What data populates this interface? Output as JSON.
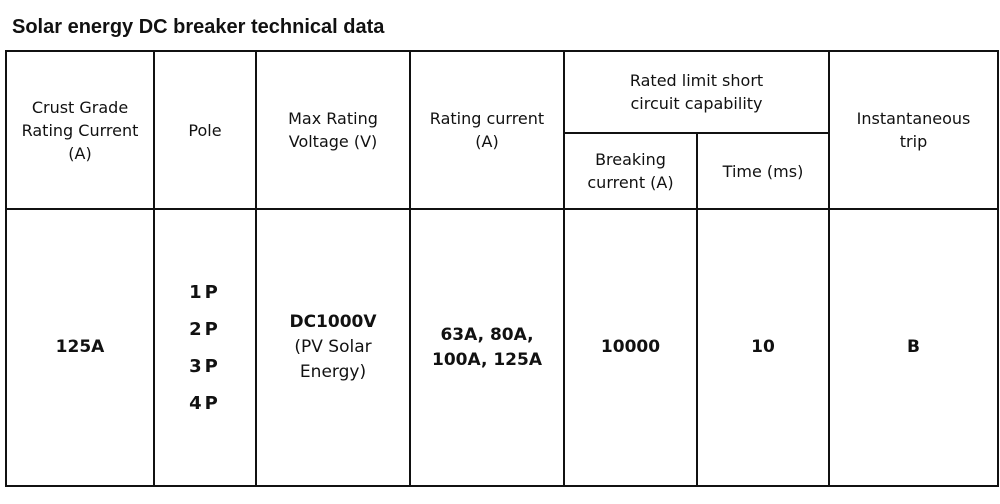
{
  "header": {
    "title": "Solar energy DC breaker technical data"
  },
  "table": {
    "headers": {
      "crust_grade": "Crust Grade Rating Current (A)",
      "pole": "Pole",
      "max_voltage": "Max Rating Voltage (V)",
      "rating_current": "Rating current (A)",
      "short_circuit": "Rated limit short circuit capability",
      "breaking_current": "Breaking current (A)",
      "time": "Time (ms)",
      "instantaneous_trip": "Instantaneous trip"
    },
    "row": {
      "crust_grade": "125A",
      "poles": [
        "1P",
        "2P",
        "3P",
        "4P"
      ],
      "voltage": "DC1000V",
      "voltage_note": "(PV Solar Energy)",
      "rating_current": "63A, 80A, 100A, 125A",
      "breaking_current": "10000",
      "time": "10",
      "instantaneous_trip": "B"
    }
  }
}
